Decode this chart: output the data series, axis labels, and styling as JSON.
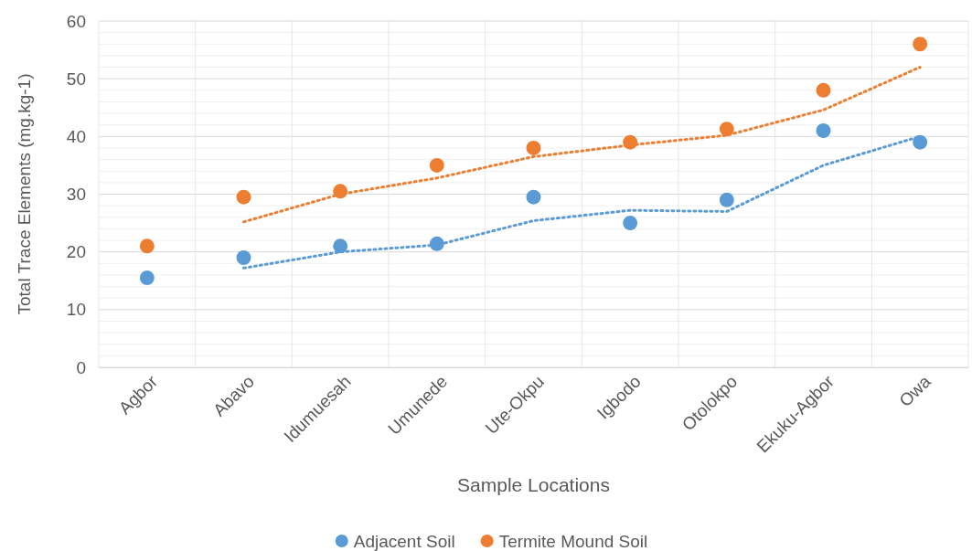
{
  "chart_data": {
    "type": "scatter",
    "xlabel": "Sample Locations",
    "ylabel": "Total Trace Elements (mg.kg-1)",
    "categories": [
      "Agbor",
      "Abavo",
      "Idumuesah",
      "Umunede",
      "Ute-Okpu",
      "Igbodo",
      "Otolokpo",
      "Ekuku-Agbor",
      "Owa"
    ],
    "series": [
      {
        "name": "Adjacent Soil",
        "color": "#5b9bd5",
        "values": [
          15.5,
          19,
          21,
          21.4,
          29.5,
          25,
          29,
          41,
          39
        ]
      },
      {
        "name": "Termite Mound Soil",
        "color": "#ed7d31",
        "values": [
          21,
          29.5,
          30.5,
          35,
          38,
          39,
          41.3,
          48,
          56
        ]
      },
      {
        "type": "line",
        "marker": "none",
        "color": "#5b9bd5",
        "values": [
          null,
          17.2,
          20,
          21.2,
          25.4,
          27.2,
          27,
          35,
          40
        ]
      },
      {
        "type": "line",
        "marker": "none",
        "color": "#ed7d31",
        "values": [
          null,
          25.2,
          30,
          32.8,
          36.5,
          38.5,
          40.2,
          44.6,
          52
        ]
      }
    ],
    "ylim": [
      0,
      60
    ],
    "yticks": [
      0,
      10,
      20,
      30,
      40,
      50,
      60
    ],
    "grid": true,
    "legend": "bottom",
    "marker": "circle",
    "line_style": "dotted"
  }
}
